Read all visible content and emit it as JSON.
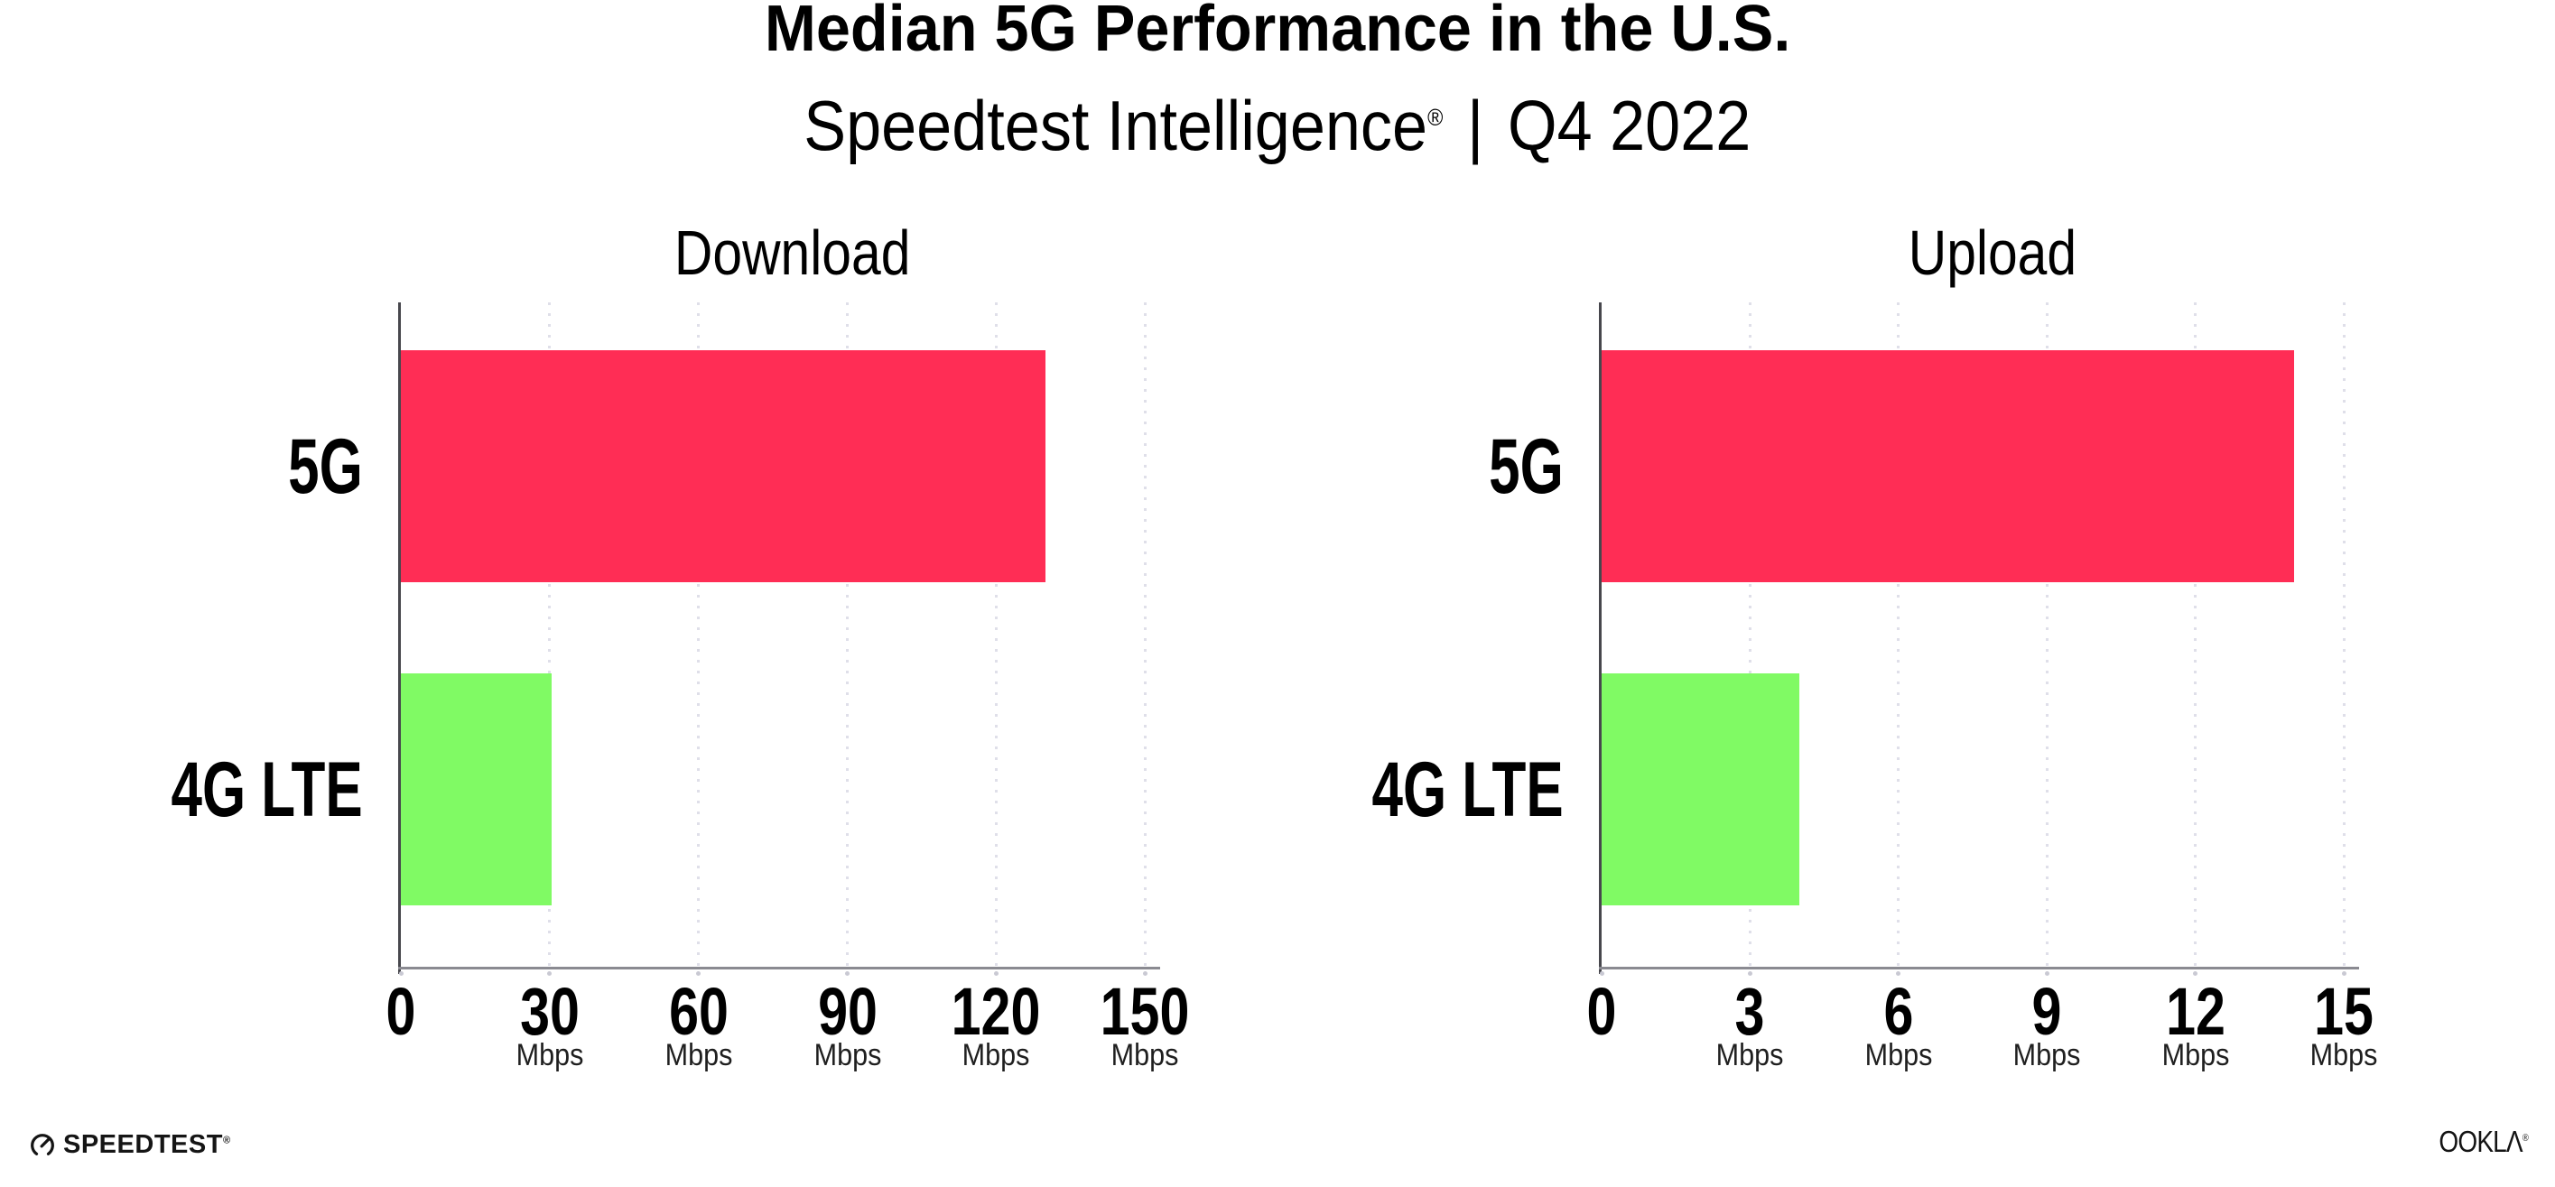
{
  "header": {
    "title": "Median 5G Performance in the U.S.",
    "subtitle_brand": "Speedtest Intelligence",
    "subtitle_reg": "®",
    "subtitle_sep": " | ",
    "subtitle_period": "Q4 2022"
  },
  "footer": {
    "speedtest_label": "SPEEDTEST",
    "speedtest_reg": "®",
    "ookla_label": "OOKLΛ",
    "ookla_reg": "®"
  },
  "colors": {
    "bar_5g": "#FF2D55",
    "bar_4g_lte": "#80FA64",
    "axis_line": "#8a8a91",
    "axis_spine": "#47474d",
    "gridline": "#dfdfe9",
    "text": "#000000",
    "background": "#ffffff"
  },
  "chart_data": [
    {
      "type": "bar",
      "orientation": "horizontal",
      "title": "Download",
      "categories": [
        "5G",
        "4G LTE"
      ],
      "values": [
        130,
        30.3
      ],
      "unit": "Mbps",
      "xticks": [
        0,
        30,
        60,
        90,
        120,
        150
      ],
      "xlim": [
        0,
        152.5
      ],
      "bar_colors": [
        "#FF2D55",
        "#80FA64"
      ],
      "grid": "dotted-vertical",
      "legend": "none"
    },
    {
      "type": "bar",
      "orientation": "horizontal",
      "title": "Upload",
      "categories": [
        "5G",
        "4G LTE"
      ],
      "values": [
        14,
        4
      ],
      "unit": "Mbps",
      "xticks": [
        0,
        3,
        6,
        9,
        12,
        15
      ],
      "xlim": [
        0,
        15.25
      ],
      "bar_colors": [
        "#FF2D55",
        "#80FA64"
      ],
      "grid": "dotted-vertical",
      "legend": "none"
    }
  ]
}
